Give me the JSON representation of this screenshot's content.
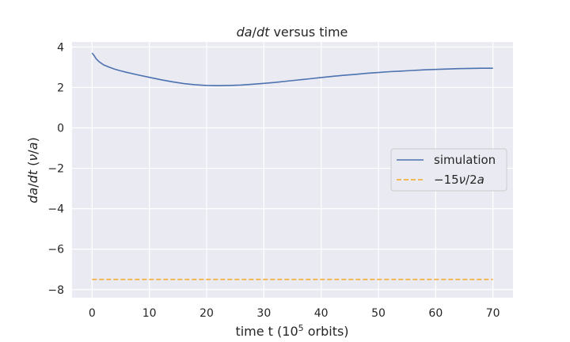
{
  "chart_data": {
    "type": "line",
    "title": "da/dt versus time",
    "xlabel": "time t    (10^5 orbits)",
    "ylabel": "da/dt    (ν/a)",
    "xlim": [
      -3.5,
      73.5
    ],
    "ylim": [
      -8.4,
      4.25
    ],
    "xticks": [
      0,
      10,
      20,
      30,
      40,
      50,
      60,
      70
    ],
    "yticks": [
      -8,
      -6,
      -4,
      -2,
      0,
      2,
      4
    ],
    "grid": true,
    "legend_position": "center-right",
    "series": [
      {
        "name": "simulation",
        "color": "#4c72b0",
        "style": "solid",
        "x": [
          0,
          0.3,
          0.7,
          1.2,
          2,
          3,
          4,
          5,
          6,
          8,
          10,
          12,
          14,
          16,
          18,
          20,
          22,
          24,
          26,
          28,
          30,
          32,
          34,
          36,
          38,
          40,
          42,
          44,
          46,
          48,
          50,
          52,
          54,
          56,
          58,
          60,
          62,
          64,
          66,
          68,
          70
        ],
        "y": [
          3.7,
          3.6,
          3.42,
          3.28,
          3.12,
          3.0,
          2.9,
          2.82,
          2.75,
          2.62,
          2.5,
          2.38,
          2.28,
          2.19,
          2.13,
          2.1,
          2.09,
          2.1,
          2.12,
          2.16,
          2.2,
          2.25,
          2.31,
          2.37,
          2.43,
          2.49,
          2.55,
          2.6,
          2.65,
          2.7,
          2.74,
          2.78,
          2.81,
          2.84,
          2.87,
          2.89,
          2.91,
          2.93,
          2.94,
          2.95,
          2.95
        ]
      },
      {
        "name": "−15ν/2a",
        "color": "#f5a623",
        "style": "dashed",
        "x": [
          0,
          70
        ],
        "y": [
          -7.5,
          -7.5
        ]
      }
    ]
  }
}
